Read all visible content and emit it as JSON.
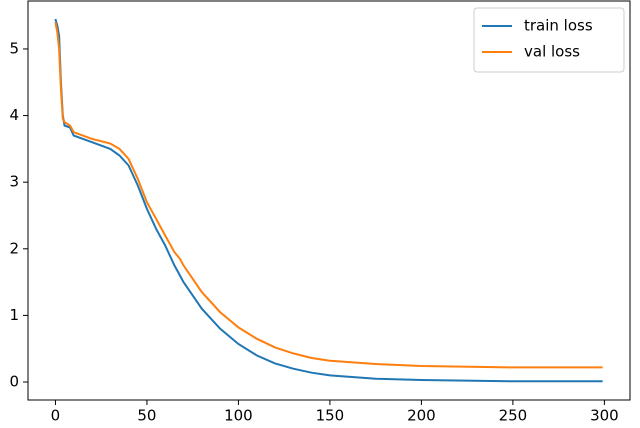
{
  "chart_data": {
    "type": "line",
    "x": [
      0,
      1,
      2,
      3,
      4,
      5,
      8,
      10,
      20,
      30,
      35,
      40,
      45,
      50,
      55,
      60,
      65,
      68,
      70,
      75,
      80,
      90,
      100,
      110,
      120,
      130,
      140,
      150,
      175,
      200,
      250,
      299
    ],
    "series": [
      {
        "name": "train loss",
        "color": "#1f77b4",
        "values": [
          5.45,
          5.35,
          5.2,
          4.5,
          4.0,
          3.85,
          3.82,
          3.7,
          3.6,
          3.5,
          3.4,
          3.25,
          2.95,
          2.6,
          2.3,
          2.05,
          1.75,
          1.6,
          1.5,
          1.3,
          1.1,
          0.8,
          0.57,
          0.4,
          0.28,
          0.2,
          0.14,
          0.1,
          0.05,
          0.03,
          0.01,
          0.01
        ]
      },
      {
        "name": "val loss",
        "color": "#ff7f0e",
        "values": [
          5.4,
          5.25,
          5.0,
          4.4,
          3.95,
          3.9,
          3.85,
          3.75,
          3.65,
          3.58,
          3.5,
          3.35,
          3.05,
          2.7,
          2.45,
          2.2,
          1.95,
          1.85,
          1.75,
          1.55,
          1.35,
          1.05,
          0.82,
          0.65,
          0.52,
          0.43,
          0.36,
          0.32,
          0.27,
          0.24,
          0.22,
          0.22
        ]
      }
    ],
    "xlim": [
      -15,
      314
    ],
    "ylim": [
      -0.27,
      5.72
    ],
    "xticks": [
      0,
      50,
      100,
      150,
      200,
      250,
      300
    ],
    "yticks": [
      0,
      1,
      2,
      3,
      4,
      5
    ],
    "legend": "upper right"
  }
}
